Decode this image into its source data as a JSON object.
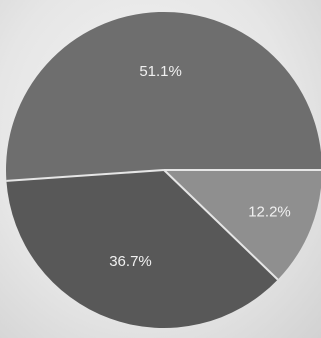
{
  "chart_data": {
    "type": "pie",
    "title": "",
    "slices": [
      {
        "label": "12.2%",
        "value": 12.2,
        "color": "#8f8f8f"
      },
      {
        "label": "36.7%",
        "value": 36.7,
        "color": "#585858"
      },
      {
        "label": "51.1%",
        "value": 51.1,
        "color": "#6e6e6e"
      }
    ],
    "start_angle_deg": 0,
    "direction": "clockwise",
    "separator_color": "#e6e6e6",
    "legend": "none"
  }
}
